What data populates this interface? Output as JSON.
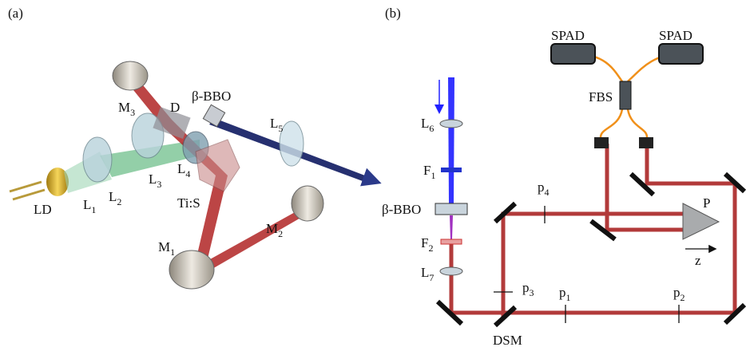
{
  "panel_a": {
    "label": "(a)",
    "components": [
      {
        "text": "LD"
      },
      {
        "text": "L",
        "sub": "1"
      },
      {
        "text": "L",
        "sub": "2"
      },
      {
        "text": "L",
        "sub": "3"
      },
      {
        "text": "L",
        "sub": "4"
      },
      {
        "text": "D"
      },
      {
        "text": "β-BBO"
      },
      {
        "text": "L",
        "sub": "5"
      },
      {
        "text": "Ti:S"
      },
      {
        "text": "M",
        "sub": "3"
      },
      {
        "text": "M",
        "sub": "2"
      },
      {
        "text": "M",
        "sub": "1"
      }
    ]
  },
  "panel_b": {
    "label": "(b)",
    "components": [
      {
        "text": "SPAD"
      },
      {
        "text": "SPAD"
      },
      {
        "text": "FBS"
      },
      {
        "text": "L",
        "sub": "6"
      },
      {
        "text": "F",
        "sub": "1"
      },
      {
        "text": "β-BBO"
      },
      {
        "text": "F",
        "sub": "2"
      },
      {
        "text": "L",
        "sub": "7"
      },
      {
        "text": "p",
        "sub": "4"
      },
      {
        "text": "P"
      },
      {
        "text": "z"
      },
      {
        "text": "p",
        "sub": "3"
      },
      {
        "text": "p",
        "sub": "1"
      },
      {
        "text": "p",
        "sub": "2"
      },
      {
        "text": "DSM"
      }
    ]
  }
}
